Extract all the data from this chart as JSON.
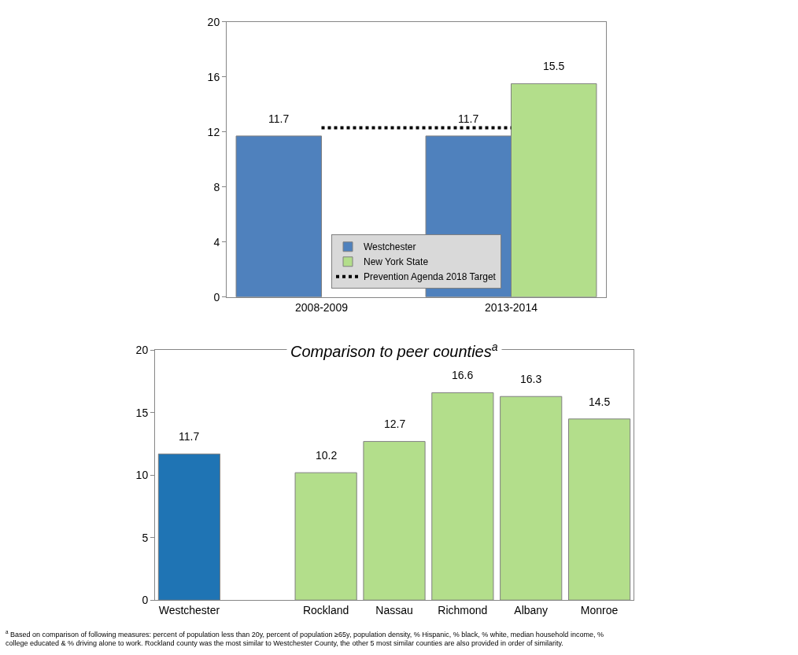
{
  "chart_data": [
    {
      "type": "bar",
      "categories": [
        "2008-2009",
        "2013-2014"
      ],
      "series": [
        {
          "name": "Westchester",
          "color": "#4f81bd",
          "values": [
            11.7,
            11.7
          ]
        },
        {
          "name": "New York State",
          "color": "#b3de8b",
          "values": [
            null,
            15.5
          ]
        }
      ],
      "ref_lines": [
        {
          "axis": "y",
          "value": 12.3,
          "label": "Prevention Agenda 2018 Target",
          "color": "#000000",
          "line_style": "dotted"
        }
      ],
      "ylim": [
        0,
        20
      ],
      "yticks": [
        0,
        4,
        8,
        12,
        16,
        20
      ],
      "data_labels": true,
      "legend": "bottom"
    },
    {
      "type": "bar",
      "title": "Comparison to peer counties$^{a}$",
      "categories": [
        "Westchester",
        null,
        "Rockland",
        "Nassau",
        "Richmond",
        "Albany",
        "Monroe"
      ],
      "values": [
        11.7,
        null,
        10.2,
        12.7,
        16.6,
        16.3,
        14.5
      ],
      "colors": [
        "#1f74b4",
        null,
        "#b3de8b",
        "#b3de8b",
        "#b3de8b",
        "#b3de8b",
        "#b3de8b"
      ],
      "ylim": [
        0,
        20
      ],
      "yticks": [
        0,
        5,
        10,
        15,
        20
      ],
      "data_labels": true,
      "legend": false,
      "annotations": [
        "$^{a}$ Based on comparison of following measures: percent of population less than 20y, percent of population ≥65y, population density, % Hispanic, % black, % white, median household income, % college educated & % driving alone to work. Rockland county was the most similar to Westchester County, the other 5 most similar counties are also provided in order of similarity."
      ]
    }
  ]
}
